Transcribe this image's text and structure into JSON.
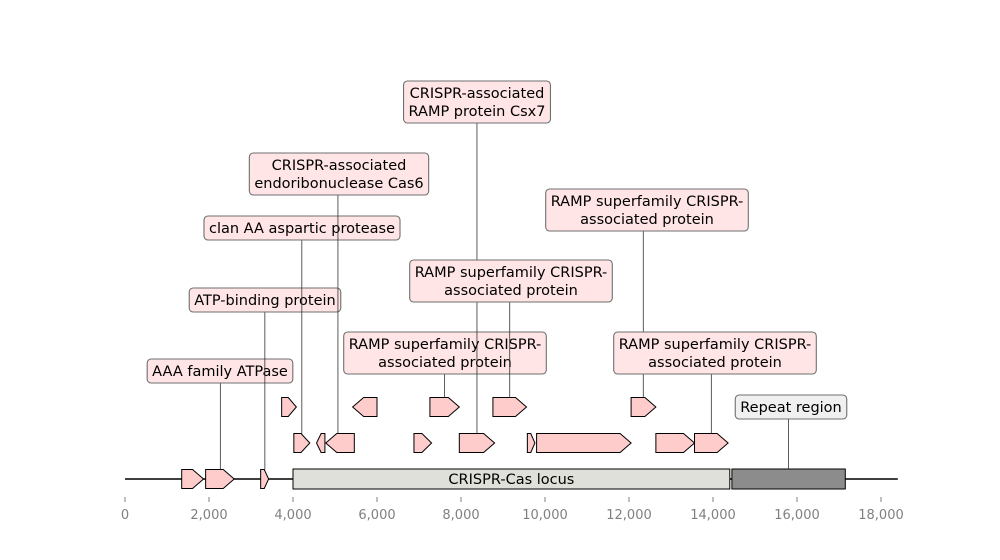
{
  "chart_data": {
    "type": "genome-map",
    "axis": {
      "range": [
        0,
        18400
      ],
      "ticks": [
        {
          "value": 0,
          "label": "0"
        },
        {
          "value": 2000,
          "label": "2,000"
        },
        {
          "value": 4000,
          "label": "4,000"
        },
        {
          "value": 6000,
          "label": "6,000"
        },
        {
          "value": 8000,
          "label": "8,000"
        },
        {
          "value": 10000,
          "label": "10,000"
        },
        {
          "value": 12000,
          "label": "12,000"
        },
        {
          "value": 14000,
          "label": "14,000"
        },
        {
          "value": 16000,
          "label": "16,000"
        },
        {
          "value": 18000,
          "label": "18,000"
        }
      ]
    },
    "colors": {
      "gene": "#ffcccc",
      "label_box": "#ffe5e5",
      "locus": "#e0e0da",
      "repeat": "#8c8c8c",
      "repeat_label_box": "#f0f0f0",
      "tick_text": "#808080"
    },
    "regions": [
      {
        "label": "CRISPR-Cas locus",
        "start": 4000,
        "end": 14400,
        "kind": "locus"
      },
      {
        "label": "Repeat region",
        "start": 14450,
        "end": 17150,
        "kind": "repeat"
      }
    ],
    "genes": [
      {
        "start": 1350,
        "end": 1870,
        "strand": 1,
        "level": 0
      },
      {
        "start": 1920,
        "end": 2600,
        "strand": 1,
        "level": 0
      },
      {
        "start": 3230,
        "end": 3420,
        "strand": 1,
        "level": 0
      },
      {
        "start": 3730,
        "end": 4080,
        "strand": 1,
        "level": 2
      },
      {
        "start": 4020,
        "end": 4400,
        "strand": 1,
        "level": 1
      },
      {
        "start": 4560,
        "end": 4760,
        "strand": -1,
        "level": 1
      },
      {
        "start": 4780,
        "end": 5460,
        "strand": -1,
        "level": 1
      },
      {
        "start": 5420,
        "end": 6000,
        "strand": -1,
        "level": 2
      },
      {
        "start": 6880,
        "end": 7300,
        "strand": 1,
        "level": 1
      },
      {
        "start": 7260,
        "end": 7960,
        "strand": 1,
        "level": 2
      },
      {
        "start": 7960,
        "end": 8800,
        "strand": 1,
        "level": 1
      },
      {
        "start": 8760,
        "end": 9560,
        "strand": 1,
        "level": 2
      },
      {
        "start": 9580,
        "end": 9760,
        "strand": 1,
        "level": 1
      },
      {
        "start": 9800,
        "end": 12050,
        "strand": 1,
        "level": 1
      },
      {
        "start": 12050,
        "end": 12640,
        "strand": 1,
        "level": 2
      },
      {
        "start": 12640,
        "end": 13560,
        "strand": 1,
        "level": 1
      },
      {
        "start": 13560,
        "end": 14360,
        "strand": 1,
        "level": 1
      }
    ],
    "annotations": [
      {
        "lines": [
          "AAA family ATPase"
        ],
        "pos": 2270,
        "gene_level": 0
      },
      {
        "lines": [
          "ATP-binding protein"
        ],
        "pos": 3330,
        "gene_level": 0
      },
      {
        "lines": [
          "clan AA aspartic protease"
        ],
        "pos": 4210,
        "gene_level": 1
      },
      {
        "lines": [
          "CRISPR-associated",
          "endoribonuclease Cas6"
        ],
        "pos": 5070,
        "gene_level": 1
      },
      {
        "lines": [
          "RAMP superfamily CRISPR-",
          "associated protein"
        ],
        "pos": 7610,
        "gene_level": 2
      },
      {
        "lines": [
          "CRISPR-associated",
          "RAMP protein Csx7"
        ],
        "pos": 8380,
        "gene_level": 1
      },
      {
        "lines": [
          "RAMP superfamily CRISPR-",
          "associated protein"
        ],
        "pos": 9160,
        "gene_level": 2
      },
      {
        "lines": [
          "RAMP superfamily CRISPR-",
          "associated protein"
        ],
        "pos": 12340,
        "gene_level": 2
      },
      {
        "lines": [
          "RAMP superfamily CRISPR-",
          "associated protein"
        ],
        "pos": 13960,
        "gene_level": 1
      },
      {
        "lines": [
          "Repeat region"
        ],
        "pos": 15800,
        "gene_level": 0,
        "box": "repeat"
      }
    ]
  }
}
